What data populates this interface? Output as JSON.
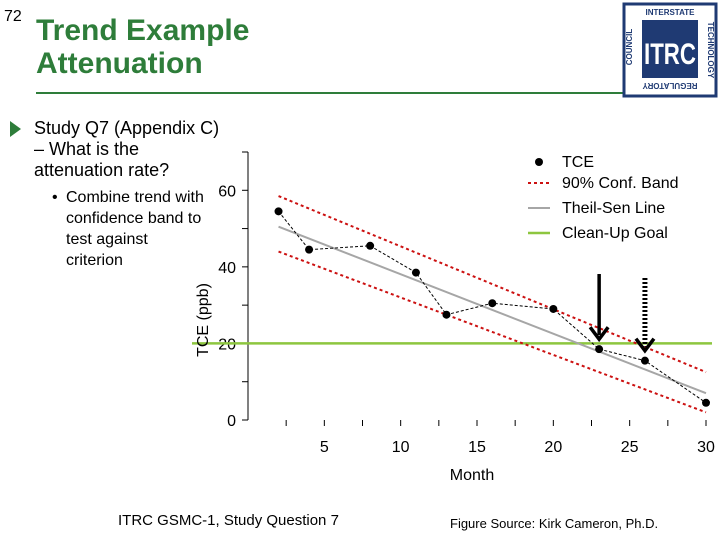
{
  "slide": {
    "number": "72",
    "title_line1": "Trend Example",
    "title_line2": "Attenuation",
    "bullet_main": "Study Q7 (Appendix C) – What is the attenuation rate?",
    "bullet_sub_marker": "•",
    "bullet_sub": "Combine trend with confidence band to test against criterion",
    "footer_left": "ITRC GSMC-1, Study Question 7",
    "footer_right": "Figure Source: Kirk Cameron, Ph.D."
  },
  "logo": {
    "letters": "ITRC",
    "top_text": "INTERSTATE",
    "left_text": "COUNCIL",
    "right_text": "TECHNOLOGY",
    "bottom_text": "REGULATORY"
  },
  "colors": {
    "title_green": "#2e7d3a",
    "conf_band": "#cc1111",
    "theil_sen": "#a6a6a6",
    "cleanup": "#8dc63f",
    "logo_blue": "#1f3a73"
  },
  "chart_data": {
    "type": "line",
    "xlabel": "Month",
    "ylabel": "TCE (ppb)",
    "xlim": [
      0,
      30
    ],
    "ylim": [
      0,
      70
    ],
    "xticks": [
      5,
      10,
      15,
      20,
      25,
      30
    ],
    "xtick_labels": [
      "5",
      "10",
      "15",
      "20",
      "25",
      "30"
    ],
    "yticks": [
      0,
      20,
      40,
      60
    ],
    "ytick_labels": [
      "0",
      "20",
      "40",
      "60"
    ],
    "legend": [
      "TCE",
      "90% Conf. Band",
      "Theil-Sen Line",
      "Clean-Up Goal"
    ],
    "legend_position": "top-right",
    "tce": {
      "x": [
        2,
        4,
        8,
        11,
        13,
        16,
        20,
        23,
        26,
        30
      ],
      "y": [
        54.5,
        44.5,
        45.5,
        38.5,
        27.5,
        30.5,
        29,
        18.5,
        15.5,
        4.5
      ]
    },
    "theil_sen": {
      "x": [
        2,
        30
      ],
      "y": [
        50.5,
        7
      ]
    },
    "conf_upper": {
      "x": [
        2,
        30
      ],
      "y": [
        58.5,
        12.5
      ]
    },
    "conf_lower": {
      "x": [
        2,
        30
      ],
      "y": [
        44,
        2
      ]
    },
    "cleanup_goal": 20,
    "arrows_at": [
      {
        "x": 23,
        "style": "solid"
      },
      {
        "x": 26,
        "style": "dotted"
      }
    ]
  }
}
